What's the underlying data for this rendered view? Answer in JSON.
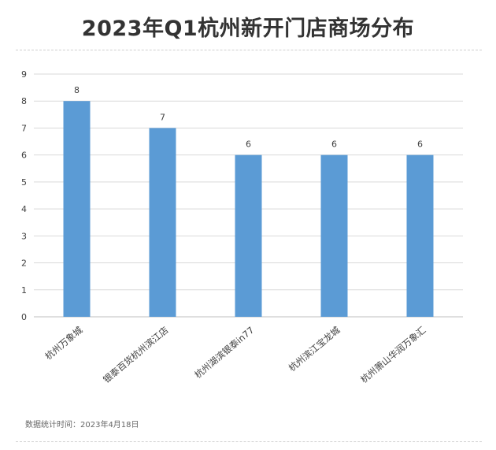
{
  "title": "2023年Q1杭州新开门店商场分布",
  "footer": "数据统计时间：2023年4月18日",
  "colors": {
    "bar": "#5b9bd5",
    "grid": "#d9d9d9",
    "axis": "#bfbfbf",
    "text": "#404040"
  },
  "chart_data": {
    "type": "bar",
    "title": "2023年Q1杭州新开门店商场分布",
    "xlabel": "",
    "ylabel": "",
    "categories": [
      "杭州万象城",
      "银泰百货杭州滨江店",
      "杭州湖滨银泰in77",
      "杭州滨江宝龙城",
      "杭州萧山华润万象汇"
    ],
    "values": [
      8,
      7,
      6,
      6,
      6
    ],
    "ylim": [
      0,
      9
    ],
    "yticks": [
      0,
      1,
      2,
      3,
      4,
      5,
      6,
      7,
      8,
      9
    ],
    "grid": true,
    "legend": "none",
    "data_labels": true
  }
}
